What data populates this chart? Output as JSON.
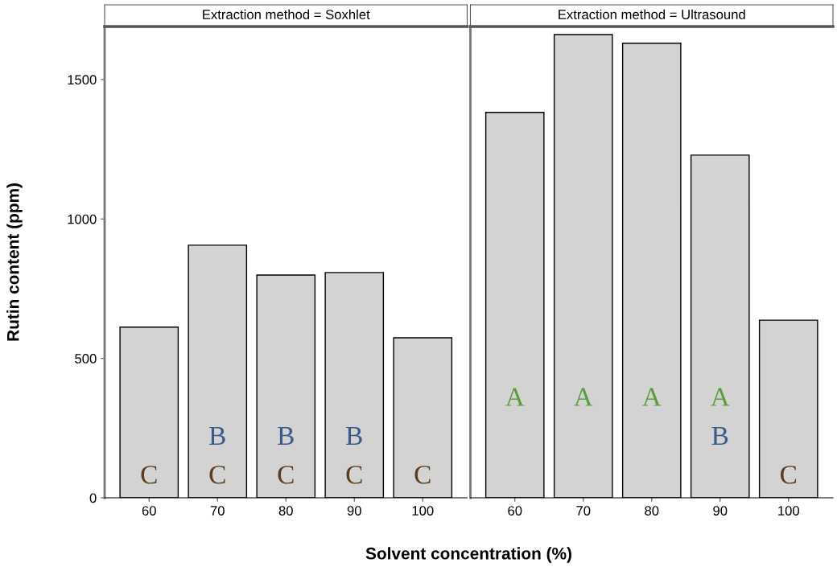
{
  "chart_data": [
    {
      "type": "bar",
      "title": "Extraction method = Soxhlet",
      "xlabel": "Solvent concentration (%)",
      "ylabel": "Rutin content (ppm)",
      "categories": [
        "60",
        "70",
        "80",
        "90",
        "100"
      ],
      "values": [
        612,
        906,
        799,
        808,
        574
      ],
      "color": "#d3d3d3",
      "ylim": [
        0,
        1690
      ],
      "yticks": [
        0,
        500,
        1000,
        1500
      ],
      "grid": false,
      "legend": false,
      "value_labels": [
        "C",
        "B\nC",
        "B\nC",
        "B\nC",
        "C"
      ]
    },
    {
      "type": "bar",
      "title": "Extraction method = Ultrasound",
      "categories": [
        "60",
        "70",
        "80",
        "90",
        "100"
      ],
      "values": [
        1382,
        1661,
        1630,
        1229,
        637
      ],
      "color": "#d3d3d3",
      "ylim": [
        0,
        1690
      ],
      "yticks": [
        0,
        500,
        1000,
        1500
      ],
      "grid": false,
      "legend": false,
      "tick_labels": "x",
      "value_labels": [
        "A",
        "A",
        "A",
        "A\nB",
        "C"
      ]
    }
  ]
}
